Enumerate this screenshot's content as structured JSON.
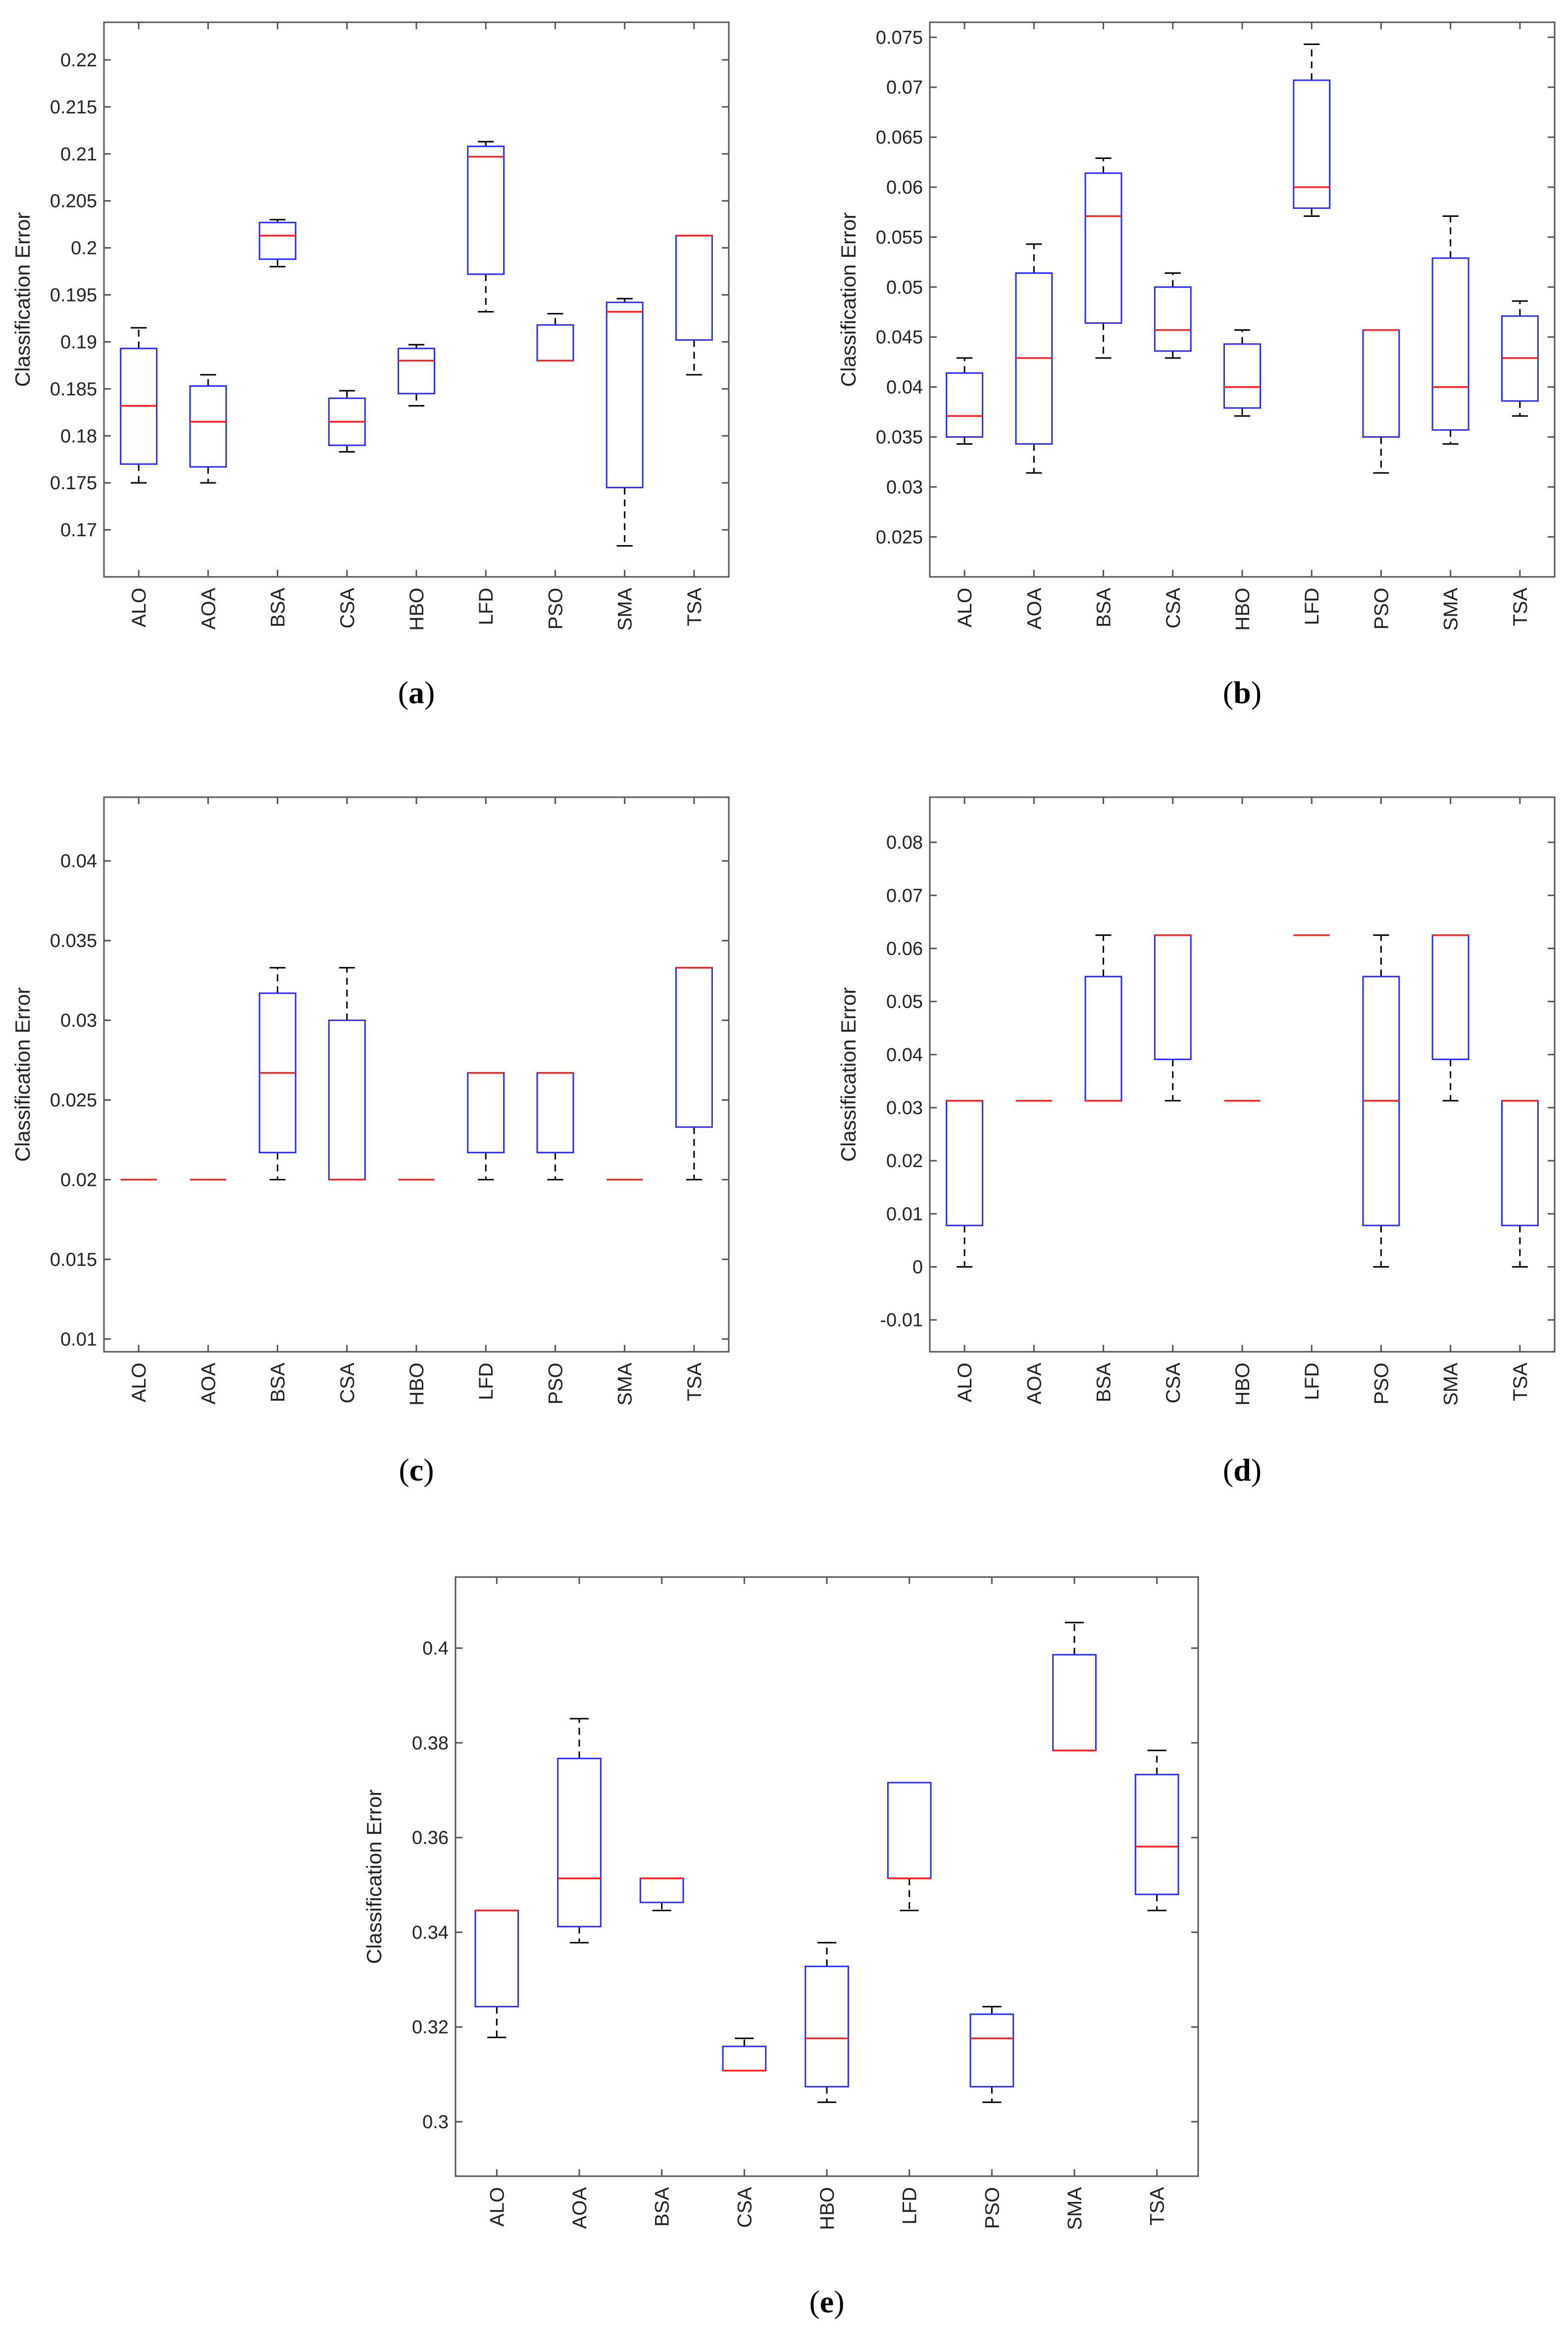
{
  "figure": {
    "ylabel": "Classification Error",
    "colors": {
      "box": "#2b2bff",
      "median": "#ff2020",
      "whisker": "#000000",
      "frame": "#555555",
      "text": "#222222"
    }
  },
  "chart_data": [
    {
      "type": "box",
      "caption": "(a)",
      "categories": [
        "ALO",
        "AOA",
        "BSA",
        "CSA",
        "HBO",
        "LFD",
        "PSO",
        "SMA",
        "TSA"
      ],
      "ylabel": "Classification Error",
      "ylim": [
        0.165,
        0.224
      ],
      "yticks": [
        0.17,
        0.175,
        0.18,
        0.185,
        0.19,
        0.195,
        0.2,
        0.205,
        0.21,
        0.215,
        0.22
      ],
      "yticklabels": [
        "0.17",
        "0.175",
        "0.18",
        "0.185",
        "0.19",
        "0.195",
        "0.2",
        "0.205",
        "0.21",
        "0.215",
        "0.22"
      ],
      "boxes": [
        {
          "min": 0.175,
          "q1": 0.177,
          "median": 0.1832,
          "q3": 0.1893,
          "max": 0.1915
        },
        {
          "min": 0.175,
          "q1": 0.1767,
          "median": 0.1815,
          "q3": 0.1853,
          "max": 0.1865
        },
        {
          "min": 0.198,
          "q1": 0.1988,
          "median": 0.2013,
          "q3": 0.2027,
          "max": 0.203
        },
        {
          "min": 0.1783,
          "q1": 0.179,
          "median": 0.1815,
          "q3": 0.184,
          "max": 0.1848
        },
        {
          "min": 0.1832,
          "q1": 0.1845,
          "median": 0.188,
          "q3": 0.1893,
          "max": 0.1897
        },
        {
          "min": 0.1932,
          "q1": 0.1972,
          "median": 0.2097,
          "q3": 0.2108,
          "max": 0.2113
        },
        {
          "min": 0.188,
          "q1": 0.188,
          "median": 0.188,
          "q3": 0.1918,
          "max": 0.193
        },
        {
          "min": 0.1683,
          "q1": 0.1745,
          "median": 0.1932,
          "q3": 0.1942,
          "max": 0.1946
        },
        {
          "min": 0.1865,
          "q1": 0.1902,
          "median": 0.2013,
          "q3": 0.2013,
          "max": 0.2013
        }
      ]
    },
    {
      "type": "box",
      "caption": "(b)",
      "categories": [
        "ALO",
        "AOA",
        "BSA",
        "CSA",
        "HBO",
        "LFD",
        "PSO",
        "SMA",
        "TSA"
      ],
      "ylabel": "Classification Error",
      "ylim": [
        0.021,
        0.0765
      ],
      "yticks": [
        0.025,
        0.03,
        0.035,
        0.04,
        0.045,
        0.05,
        0.055,
        0.06,
        0.065,
        0.07,
        0.075
      ],
      "yticklabels": [
        "0.025",
        "0.03",
        "0.035",
        "0.04",
        "0.045",
        "0.05",
        "0.055",
        "0.06",
        "0.065",
        "0.07",
        "0.075"
      ],
      "boxes": [
        {
          "min": 0.0343,
          "q1": 0.035,
          "median": 0.0371,
          "q3": 0.0414,
          "max": 0.0429
        },
        {
          "min": 0.0314,
          "q1": 0.0343,
          "median": 0.0429,
          "q3": 0.0514,
          "max": 0.0543
        },
        {
          "min": 0.0429,
          "q1": 0.0464,
          "median": 0.0571,
          "q3": 0.0614,
          "max": 0.0629
        },
        {
          "min": 0.0429,
          "q1": 0.0436,
          "median": 0.0457,
          "q3": 0.05,
          "max": 0.0514
        },
        {
          "min": 0.0371,
          "q1": 0.0379,
          "median": 0.04,
          "q3": 0.0443,
          "max": 0.0457
        },
        {
          "min": 0.0571,
          "q1": 0.0579,
          "median": 0.06,
          "q3": 0.0707,
          "max": 0.0743
        },
        {
          "min": 0.0314,
          "q1": 0.035,
          "median": 0.0457,
          "q3": 0.0457,
          "max": 0.0457
        },
        {
          "min": 0.0343,
          "q1": 0.0357,
          "median": 0.04,
          "q3": 0.0529,
          "max": 0.0571
        },
        {
          "min": 0.0371,
          "q1": 0.0386,
          "median": 0.0429,
          "q3": 0.0471,
          "max": 0.0486
        }
      ]
    },
    {
      "type": "box",
      "caption": "(c)",
      "categories": [
        "ALO",
        "AOA",
        "BSA",
        "CSA",
        "HBO",
        "LFD",
        "PSO",
        "SMA",
        "TSA"
      ],
      "ylabel": "Classification Error",
      "ylim": [
        0.0092,
        0.044
      ],
      "yticks": [
        0.01,
        0.015,
        0.02,
        0.025,
        0.03,
        0.035,
        0.04
      ],
      "yticklabels": [
        "0.01",
        "0.015",
        "0.02",
        "0.025",
        "0.03",
        "0.035",
        "0.04"
      ],
      "boxes": [
        {
          "min": 0.02,
          "q1": 0.02,
          "median": 0.02,
          "q3": 0.02,
          "max": 0.02
        },
        {
          "min": 0.02,
          "q1": 0.02,
          "median": 0.02,
          "q3": 0.02,
          "max": 0.02
        },
        {
          "min": 0.02,
          "q1": 0.0217,
          "median": 0.0267,
          "q3": 0.0317,
          "max": 0.0333
        },
        {
          "min": 0.02,
          "q1": 0.02,
          "median": 0.02,
          "q3": 0.03,
          "max": 0.0333
        },
        {
          "min": 0.02,
          "q1": 0.02,
          "median": 0.02,
          "q3": 0.02,
          "max": 0.02
        },
        {
          "min": 0.02,
          "q1": 0.0217,
          "median": 0.0267,
          "q3": 0.0267,
          "max": 0.0267
        },
        {
          "min": 0.02,
          "q1": 0.0217,
          "median": 0.0267,
          "q3": 0.0267,
          "max": 0.0267
        },
        {
          "min": 0.02,
          "q1": 0.02,
          "median": 0.02,
          "q3": 0.02,
          "max": 0.02
        },
        {
          "min": 0.02,
          "q1": 0.0233,
          "median": 0.0333,
          "q3": 0.0333,
          "max": 0.0333
        }
      ]
    },
    {
      "type": "box",
      "caption": "(d)",
      "categories": [
        "ALO",
        "AOA",
        "BSA",
        "CSA",
        "HBO",
        "LFD",
        "PSO",
        "SMA",
        "TSA"
      ],
      "ylabel": "Classification Error",
      "ylim": [
        -0.016,
        0.0885
      ],
      "yticks": [
        -0.01,
        0,
        0.01,
        0.02,
        0.03,
        0.04,
        0.05,
        0.06,
        0.07,
        0.08
      ],
      "yticklabels": [
        "-0.01",
        "0",
        "0.01",
        "0.02",
        "0.03",
        "0.04",
        "0.05",
        "0.06",
        "0.07",
        "0.08"
      ],
      "boxes": [
        {
          "min": 0,
          "q1": 0.0078,
          "median": 0.0313,
          "q3": 0.0313,
          "max": 0.0313
        },
        {
          "min": 0.0313,
          "q1": 0.0313,
          "median": 0.0313,
          "q3": 0.0313,
          "max": 0.0313
        },
        {
          "min": 0.0313,
          "q1": 0.0313,
          "median": 0.0313,
          "q3": 0.0547,
          "max": 0.0625
        },
        {
          "min": 0.0313,
          "q1": 0.0391,
          "median": 0.0625,
          "q3": 0.0625,
          "max": 0.0625
        },
        {
          "min": 0.0313,
          "q1": 0.0313,
          "median": 0.0313,
          "q3": 0.0313,
          "max": 0.0313
        },
        {
          "min": 0.0625,
          "q1": 0.0625,
          "median": 0.0625,
          "q3": 0.0625,
          "max": 0.0625
        },
        {
          "min": 0,
          "q1": 0.0078,
          "median": 0.0313,
          "q3": 0.0547,
          "max": 0.0625
        },
        {
          "min": 0.0313,
          "q1": 0.0391,
          "median": 0.0625,
          "q3": 0.0625,
          "max": 0.0625
        },
        {
          "min": 0,
          "q1": 0.0078,
          "median": 0.0313,
          "q3": 0.0313,
          "max": 0.0313
        }
      ]
    },
    {
      "type": "box",
      "caption": "(e)",
      "categories": [
        "ALO",
        "AOA",
        "BSA",
        "CSA",
        "HBO",
        "LFD",
        "PSO",
        "SMA",
        "TSA"
      ],
      "ylabel": "Classification Error",
      "ylim": [
        0.2885,
        0.415
      ],
      "yticks": [
        0.3,
        0.32,
        0.34,
        0.36,
        0.38,
        0.4
      ],
      "yticklabels": [
        "0.3",
        "0.32",
        "0.34",
        "0.36",
        "0.38",
        "0.4"
      ],
      "boxes": [
        {
          "min": 0.3178,
          "q1": 0.3243,
          "median": 0.3446,
          "q3": 0.3446,
          "max": 0.3446
        },
        {
          "min": 0.3378,
          "q1": 0.3412,
          "median": 0.3514,
          "q3": 0.3767,
          "max": 0.3851
        },
        {
          "min": 0.3446,
          "q1": 0.3463,
          "median": 0.3514,
          "q3": 0.3514,
          "max": 0.3514
        },
        {
          "min": 0.3108,
          "q1": 0.3108,
          "median": 0.3108,
          "q3": 0.3159,
          "max": 0.3176
        },
        {
          "min": 0.3041,
          "q1": 0.3074,
          "median": 0.3176,
          "q3": 0.3328,
          "max": 0.3378
        },
        {
          "min": 0.3446,
          "q1": 0.3514,
          "median": 0.3514,
          "q3": 0.3716,
          "max": 0.3716
        },
        {
          "min": 0.3041,
          "q1": 0.3074,
          "median": 0.3176,
          "q3": 0.3227,
          "max": 0.3243
        },
        {
          "min": 0.3784,
          "q1": 0.3784,
          "median": 0.3784,
          "q3": 0.3986,
          "max": 0.4054
        },
        {
          "min": 0.3446,
          "q1": 0.348,
          "median": 0.3581,
          "q3": 0.3733,
          "max": 0.3784
        }
      ]
    }
  ]
}
